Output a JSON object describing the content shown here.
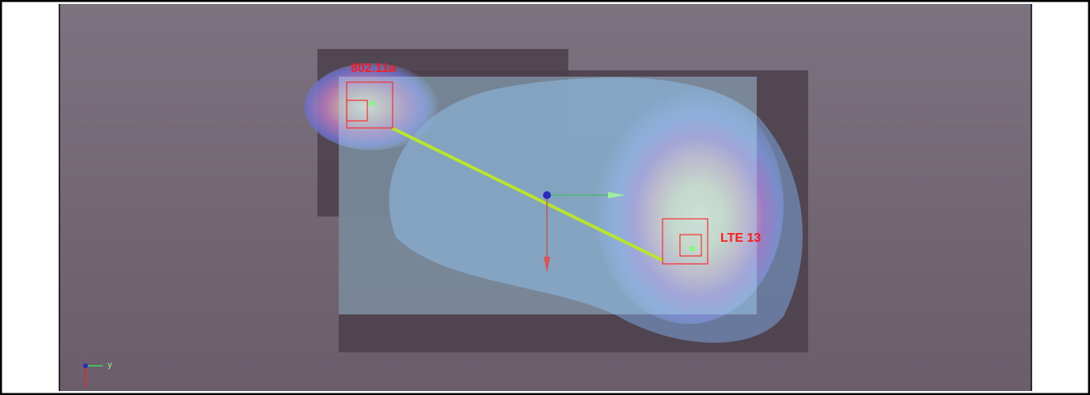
{
  "labels": {
    "source_a": "802.11a",
    "source_b": "LTE 13"
  },
  "axis": {
    "y": "y"
  }
}
